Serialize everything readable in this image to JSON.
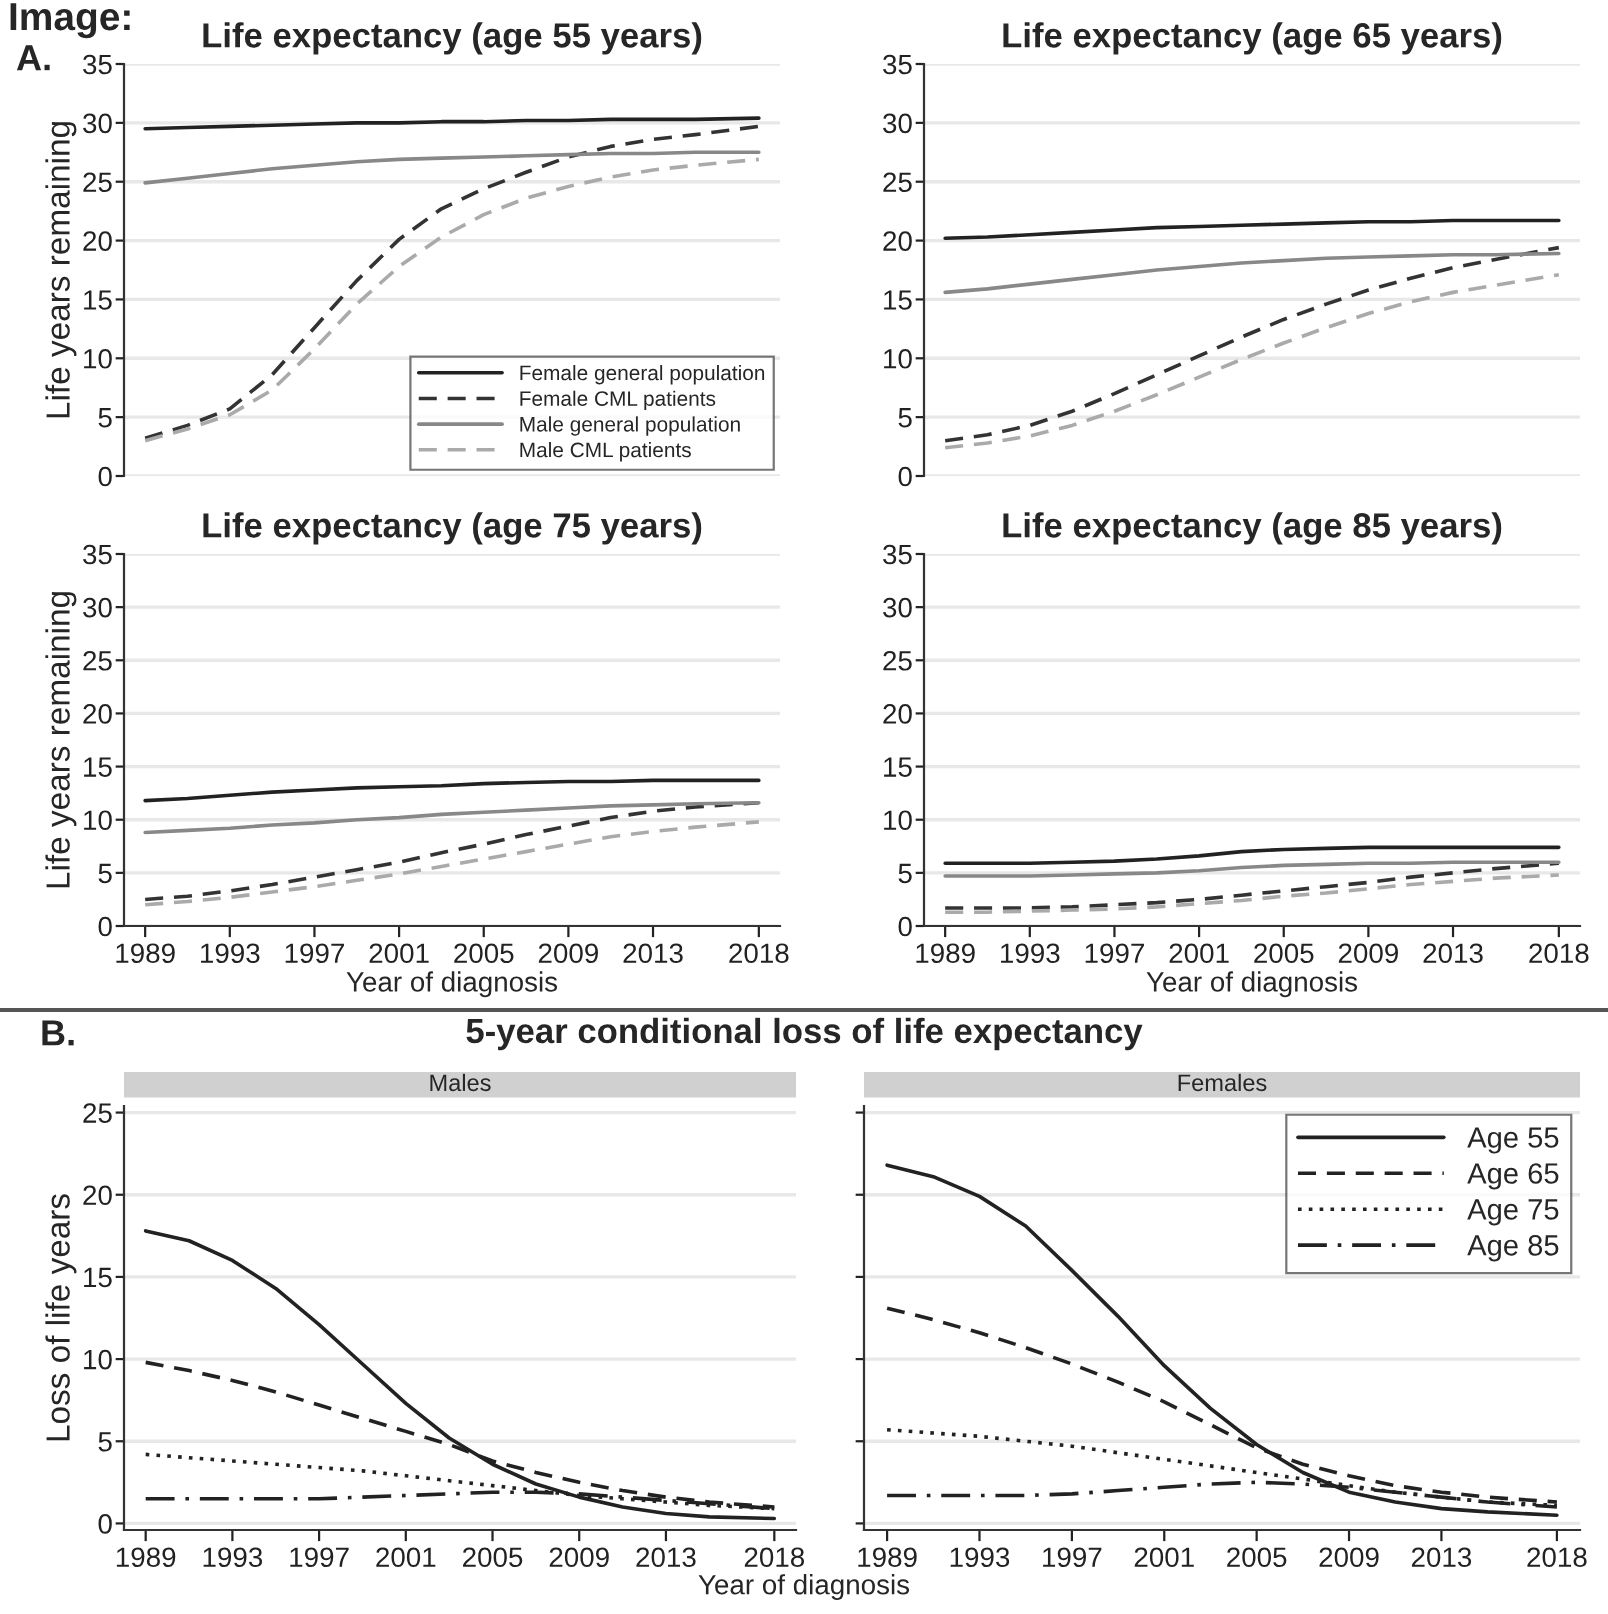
{
  "chart_data": [
    {
      "type": "line",
      "title": "Life expectancy (age 55 years)",
      "ylabel": "Life years remaining",
      "annotations": [
        "Image:",
        "A."
      ],
      "x": [
        1989,
        1991,
        1993,
        1995,
        1997,
        1999,
        2001,
        2003,
        2005,
        2007,
        2009,
        2011,
        2013,
        2015,
        2018
      ],
      "xlim": [
        1988,
        2019
      ],
      "ylim": [
        0,
        35
      ],
      "yticks": [
        0,
        5,
        10,
        15,
        20,
        25,
        30,
        35
      ],
      "grid": "y",
      "tick_labels": "y",
      "legend": "bottom right",
      "series": [
        {
          "name": "Female general population",
          "color": "#222222",
          "line_style": "solid",
          "values": [
            29.5,
            29.6,
            29.7,
            29.8,
            29.9,
            30.0,
            30.0,
            30.1,
            30.1,
            30.2,
            30.2,
            30.3,
            30.3,
            30.3,
            30.4
          ]
        },
        {
          "name": "Female CML patients",
          "color": "#333333",
          "line_style": "dashed",
          "values": [
            3.2,
            4.3,
            5.7,
            8.6,
            12.6,
            16.6,
            20.1,
            22.7,
            24.4,
            25.8,
            27.1,
            28.0,
            28.6,
            29.0,
            29.7
          ]
        },
        {
          "name": "Male general population",
          "color": "#888888",
          "line_style": "solid",
          "values": [
            24.9,
            25.3,
            25.7,
            26.1,
            26.4,
            26.7,
            26.9,
            27.0,
            27.1,
            27.2,
            27.3,
            27.4,
            27.4,
            27.5,
            27.5
          ]
        },
        {
          "name": "Male CML patients",
          "color": "#aaaaaa",
          "line_style": "dashed",
          "values": [
            3.0,
            4.0,
            5.2,
            7.3,
            10.8,
            14.6,
            17.8,
            20.3,
            22.2,
            23.6,
            24.6,
            25.4,
            26.0,
            26.4,
            26.9
          ]
        }
      ]
    },
    {
      "type": "line",
      "title": "Life expectancy (age 65 years)",
      "x": [
        1989,
        1991,
        1993,
        1995,
        1997,
        1999,
        2001,
        2003,
        2005,
        2007,
        2009,
        2011,
        2013,
        2015,
        2018
      ],
      "xlim": [
        1988,
        2019
      ],
      "ylim": [
        0,
        35
      ],
      "yticks": [
        0,
        5,
        10,
        15,
        20,
        25,
        30,
        35
      ],
      "grid": "y",
      "tick_labels": "y",
      "series": [
        {
          "color": "#222222",
          "line_style": "solid",
          "values": [
            20.2,
            20.3,
            20.5,
            20.7,
            20.9,
            21.1,
            21.2,
            21.3,
            21.4,
            21.5,
            21.6,
            21.6,
            21.7,
            21.7,
            21.7
          ]
        },
        {
          "color": "#333333",
          "line_style": "dashed",
          "values": [
            3.0,
            3.5,
            4.3,
            5.5,
            7.0,
            8.6,
            10.2,
            11.8,
            13.3,
            14.6,
            15.8,
            16.8,
            17.7,
            18.4,
            19.4
          ]
        },
        {
          "color": "#888888",
          "line_style": "solid",
          "values": [
            15.6,
            15.9,
            16.3,
            16.7,
            17.1,
            17.5,
            17.8,
            18.1,
            18.3,
            18.5,
            18.6,
            18.7,
            18.8,
            18.8,
            18.9
          ]
        },
        {
          "color": "#aaaaaa",
          "line_style": "dashed",
          "values": [
            2.4,
            2.8,
            3.4,
            4.3,
            5.5,
            6.9,
            8.4,
            9.9,
            11.3,
            12.6,
            13.8,
            14.8,
            15.6,
            16.2,
            17.1
          ]
        }
      ]
    },
    {
      "type": "line",
      "title": "Life expectancy (age 75 years)",
      "xlabel": "Year of diagnosis",
      "ylabel": "Life years remaining",
      "x": [
        1989,
        1991,
        1993,
        1995,
        1997,
        1999,
        2001,
        2003,
        2005,
        2007,
        2009,
        2011,
        2013,
        2015,
        2018
      ],
      "xlim": [
        1988,
        2019
      ],
      "xticks": [
        1989,
        1993,
        1997,
        2001,
        2005,
        2009,
        2013,
        2018
      ],
      "ylim": [
        0,
        35
      ],
      "yticks": [
        0,
        5,
        10,
        15,
        20,
        25,
        30,
        35
      ],
      "grid": "y",
      "series": [
        {
          "color": "#222222",
          "line_style": "solid",
          "values": [
            11.8,
            12.0,
            12.3,
            12.6,
            12.8,
            13.0,
            13.1,
            13.2,
            13.4,
            13.5,
            13.6,
            13.6,
            13.7,
            13.7,
            13.7
          ]
        },
        {
          "color": "#333333",
          "line_style": "dashed",
          "values": [
            2.5,
            2.8,
            3.3,
            3.9,
            4.6,
            5.3,
            6.0,
            6.9,
            7.7,
            8.6,
            9.4,
            10.2,
            10.8,
            11.2,
            11.6
          ]
        },
        {
          "color": "#888888",
          "line_style": "solid",
          "values": [
            8.8,
            9.0,
            9.2,
            9.5,
            9.7,
            10.0,
            10.2,
            10.5,
            10.7,
            10.9,
            11.1,
            11.3,
            11.4,
            11.5,
            11.6
          ]
        },
        {
          "color": "#aaaaaa",
          "line_style": "dashed",
          "values": [
            2.0,
            2.3,
            2.7,
            3.2,
            3.7,
            4.3,
            4.9,
            5.6,
            6.3,
            7.0,
            7.7,
            8.4,
            8.9,
            9.3,
            9.8
          ]
        }
      ]
    },
    {
      "type": "line",
      "title": "Life expectancy (age 85 years)",
      "xlabel": "Year of diagnosis",
      "x": [
        1989,
        1991,
        1993,
        1995,
        1997,
        1999,
        2001,
        2003,
        2005,
        2007,
        2009,
        2011,
        2013,
        2015,
        2018
      ],
      "xlim": [
        1988,
        2019
      ],
      "xticks": [
        1989,
        1993,
        1997,
        2001,
        2005,
        2009,
        2013,
        2018
      ],
      "ylim": [
        0,
        35
      ],
      "yticks": [
        0,
        5,
        10,
        15,
        20,
        25,
        30,
        35
      ],
      "grid": "y",
      "series": [
        {
          "color": "#222222",
          "line_style": "solid",
          "values": [
            5.9,
            5.9,
            5.9,
            6.0,
            6.1,
            6.3,
            6.6,
            7.0,
            7.2,
            7.3,
            7.4,
            7.4,
            7.4,
            7.4,
            7.4
          ]
        },
        {
          "color": "#333333",
          "line_style": "dashed",
          "values": [
            1.7,
            1.7,
            1.7,
            1.8,
            2.0,
            2.2,
            2.5,
            2.9,
            3.3,
            3.7,
            4.1,
            4.6,
            5.0,
            5.4,
            5.9
          ]
        },
        {
          "color": "#888888",
          "line_style": "solid",
          "values": [
            4.7,
            4.7,
            4.7,
            4.8,
            4.9,
            5.0,
            5.2,
            5.5,
            5.7,
            5.8,
            5.9,
            5.9,
            6.0,
            6.0,
            6.0
          ]
        },
        {
          "color": "#aaaaaa",
          "line_style": "dashed",
          "values": [
            1.3,
            1.3,
            1.4,
            1.5,
            1.6,
            1.8,
            2.1,
            2.4,
            2.8,
            3.1,
            3.5,
            3.9,
            4.2,
            4.5,
            4.8
          ]
        }
      ]
    },
    {
      "type": "line",
      "title": "5-year conditional loss of life expectancy",
      "subtitle": "Males",
      "xlabel": "Year of diagnosis",
      "ylabel": "Loss of life years",
      "annotations": [
        "B."
      ],
      "x": [
        1989,
        1991,
        1993,
        1995,
        1997,
        1999,
        2001,
        2003,
        2005,
        2007,
        2009,
        2011,
        2013,
        2015,
        2018
      ],
      "xlim": [
        1988,
        2019
      ],
      "xticks": [
        1989,
        1993,
        1997,
        2001,
        2005,
        2009,
        2013,
        2018
      ],
      "ylim": [
        -0.4,
        25.4
      ],
      "yticks": [
        0,
        5,
        10,
        15,
        20,
        25
      ],
      "grid": "y",
      "series": [
        {
          "color": "#222222",
          "line_style": "solid",
          "values": [
            17.8,
            17.2,
            16.0,
            14.3,
            12.1,
            9.7,
            7.3,
            5.2,
            3.6,
            2.4,
            1.6,
            1.0,
            0.6,
            0.4,
            0.3
          ]
        },
        {
          "color": "#222222",
          "line_style": "dashed",
          "values": [
            9.8,
            9.3,
            8.7,
            8.0,
            7.2,
            6.4,
            5.6,
            4.8,
            3.8,
            3.1,
            2.5,
            2.0,
            1.6,
            1.3,
            1.0
          ]
        },
        {
          "color": "#222222",
          "line_style": "dotted",
          "values": [
            4.2,
            4.0,
            3.8,
            3.6,
            3.4,
            3.2,
            2.9,
            2.6,
            2.3,
            2.0,
            1.7,
            1.5,
            1.3,
            1.1,
            0.9
          ]
        },
        {
          "color": "#222222",
          "line_style": "dashdot",
          "values": [
            1.5,
            1.5,
            1.5,
            1.5,
            1.5,
            1.6,
            1.7,
            1.8,
            1.9,
            1.9,
            1.8,
            1.6,
            1.4,
            1.2,
            0.9
          ]
        }
      ]
    },
    {
      "type": "line",
      "subtitle": "Females",
      "x": [
        1989,
        1991,
        1993,
        1995,
        1997,
        1999,
        2001,
        2003,
        2005,
        2007,
        2009,
        2011,
        2013,
        2015,
        2018
      ],
      "xlim": [
        1988,
        2019
      ],
      "xticks": [
        1989,
        1993,
        1997,
        2001,
        2005,
        2009,
        2013,
        2018
      ],
      "ylim": [
        -0.4,
        25.4
      ],
      "yticks": [
        0,
        5,
        10,
        15,
        20,
        25
      ],
      "grid": "y",
      "tick_labels": "x",
      "legend": "top right",
      "series": [
        {
          "name": "Age 55",
          "color": "#222222",
          "line_style": "solid",
          "values": [
            21.8,
            21.1,
            19.9,
            18.1,
            15.4,
            12.6,
            9.6,
            7.0,
            4.8,
            3.1,
            1.9,
            1.3,
            0.9,
            0.7,
            0.5
          ]
        },
        {
          "name": "Age 65",
          "color": "#222222",
          "line_style": "dashed",
          "values": [
            13.1,
            12.4,
            11.6,
            10.7,
            9.7,
            8.6,
            7.4,
            6.0,
            4.6,
            3.6,
            2.9,
            2.3,
            1.9,
            1.6,
            1.3
          ]
        },
        {
          "name": "Age 75",
          "color": "#222222",
          "line_style": "dotted",
          "values": [
            5.7,
            5.5,
            5.3,
            5.0,
            4.7,
            4.3,
            3.9,
            3.5,
            3.1,
            2.7,
            2.3,
            1.9,
            1.6,
            1.3,
            1.1
          ]
        },
        {
          "name": "Age 85",
          "color": "#222222",
          "line_style": "dashdot",
          "values": [
            1.7,
            1.7,
            1.7,
            1.7,
            1.8,
            2.0,
            2.2,
            2.4,
            2.5,
            2.4,
            2.2,
            1.9,
            1.6,
            1.3,
            1.0
          ]
        }
      ]
    }
  ]
}
